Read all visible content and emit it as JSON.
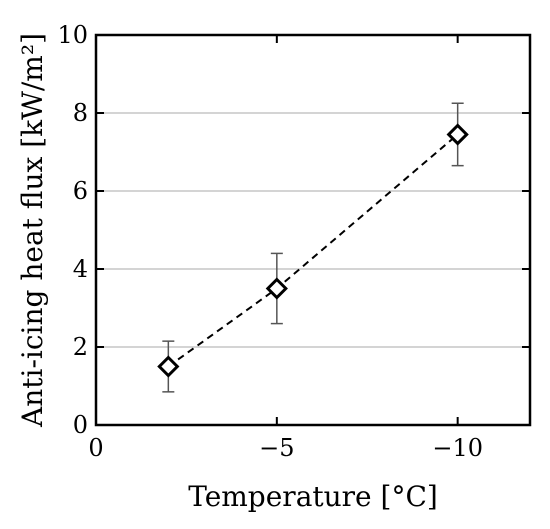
{
  "chart_data": {
    "type": "scatter",
    "title": "",
    "xlabel": "Temperature [°C]",
    "ylabel": "Anti-icing heat flux [kW/m²]",
    "x_reversed": true,
    "xlim": [
      0,
      -12
    ],
    "ylim": [
      0,
      10
    ],
    "x_ticks": [
      0,
      -5,
      -10
    ],
    "x_tick_labels": [
      "0",
      "−5",
      "−10"
    ],
    "y_ticks": [
      0,
      2,
      4,
      6,
      8,
      10
    ],
    "y_tick_labels": [
      "0",
      "2",
      "4",
      "6",
      "8",
      "10"
    ],
    "grid": "horizontal",
    "legend": "none",
    "series": [
      {
        "marker": "diamond",
        "line": "dashed",
        "x": [
          -2,
          -5,
          -10
        ],
        "y": [
          1.5,
          3.5,
          7.45
        ],
        "y_err_low": [
          0.85,
          2.6,
          6.65
        ],
        "y_err_high": [
          2.15,
          4.4,
          8.25
        ]
      }
    ],
    "colors": {
      "grid": "#d4d4d4",
      "marks": "#000000"
    }
  }
}
